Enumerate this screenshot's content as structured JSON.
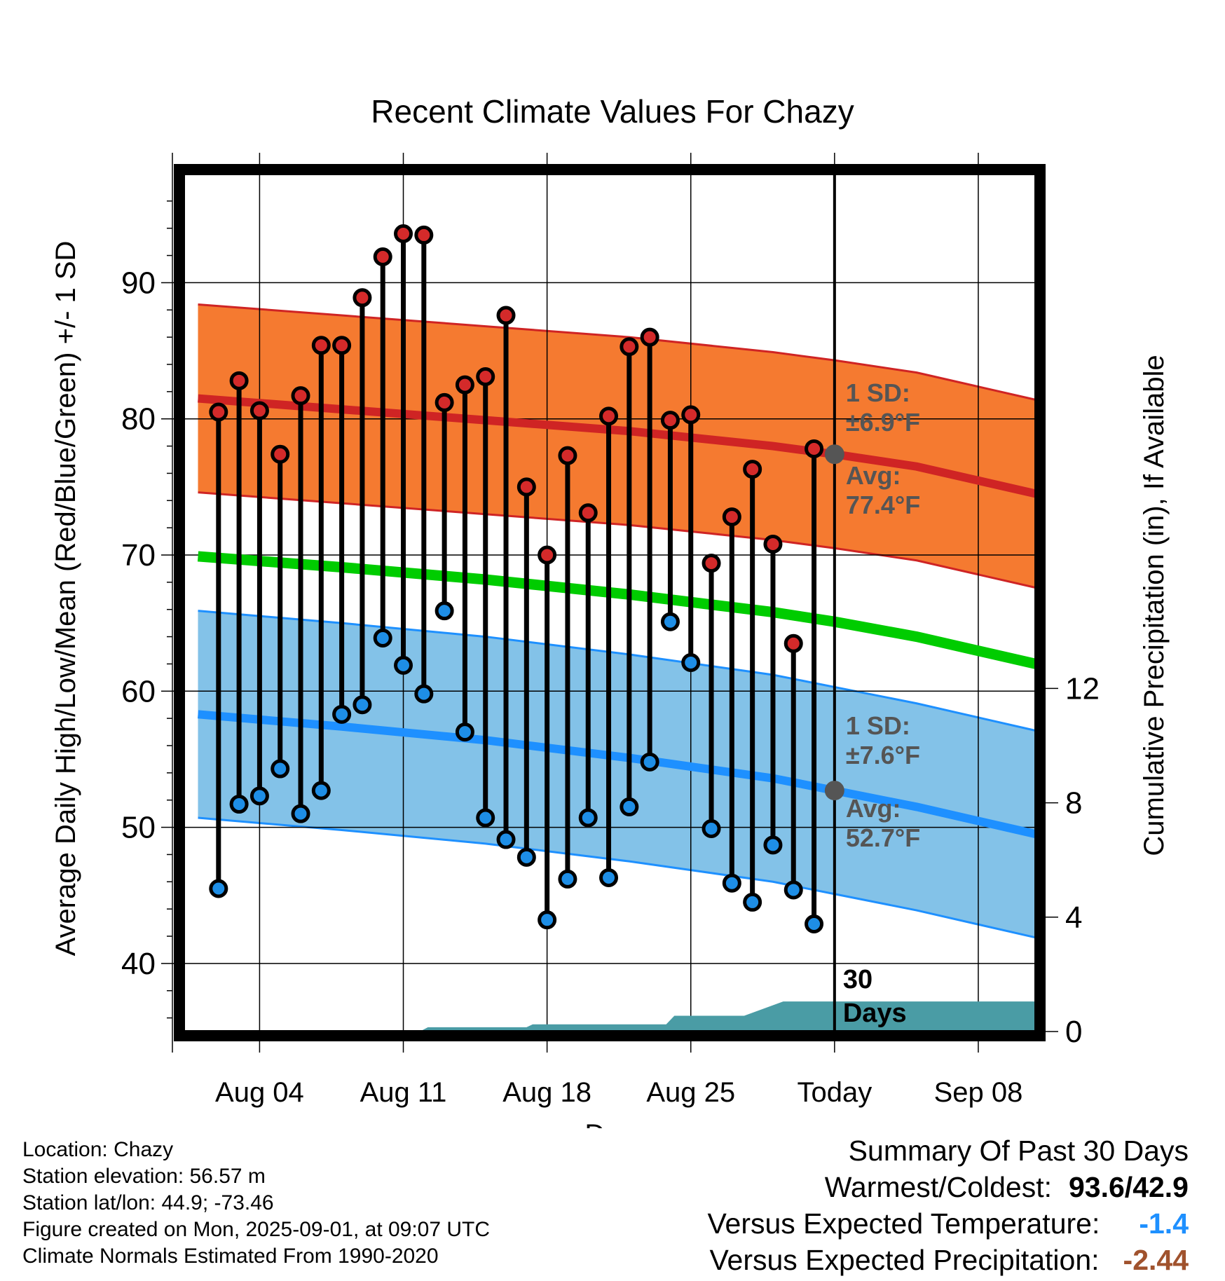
{
  "chart_data": {
    "type": "line",
    "title": "Recent Climate Values For Chazy",
    "xlabel": "Day",
    "ylabel": "Average Daily High/Low/Mean (Red/Blue/Green) +/- 1 SD",
    "y2label": "Cumulative Precipitation (in), If Available",
    "ylim": [
      35,
      98
    ],
    "y2lim": [
      0,
      30
    ],
    "xlim_day_of_year": [
      212.3,
      253.8
    ],
    "x_ticks": [
      {
        "label": "Aug 04",
        "doy": 216
      },
      {
        "label": "Aug 11",
        "doy": 223
      },
      {
        "label": "Aug 18",
        "doy": 230
      },
      {
        "label": "Aug 25",
        "doy": 237
      },
      {
        "label": "Today",
        "doy": 244
      },
      {
        "label": "Sep 08",
        "doy": 251
      }
    ],
    "y_ticks": [
      40,
      50,
      60,
      70,
      80,
      90
    ],
    "y2_ticks": [
      0,
      4,
      8,
      12
    ],
    "today_doy": 244,
    "today_label": [
      "30",
      "Days"
    ],
    "normals": {
      "doy": [
        213,
        220,
        227,
        234,
        241,
        244,
        248,
        253.8
      ],
      "high_avg": [
        81.5,
        80.7,
        79.9,
        79.1,
        78.0,
        77.4,
        76.5,
        74.5
      ],
      "high_sd": 6.9,
      "low_avg": [
        58.3,
        57.4,
        56.4,
        55.1,
        53.6,
        52.7,
        51.5,
        49.5
      ],
      "low_sd": 7.6,
      "mean_avg": [
        69.9,
        69.1,
        68.2,
        67.1,
        65.8,
        65.1,
        64.0,
        62.0
      ],
      "high_label": [
        "1 SD:",
        "±6.9°F",
        "Avg:",
        "77.4°F"
      ],
      "low_label": [
        "1 SD:",
        "±7.6°F",
        "Avg:",
        "52.7°F"
      ]
    },
    "days": [
      {
        "doy": 214,
        "high": 80.5,
        "low": 45.5
      },
      {
        "doy": 215,
        "high": 82.8,
        "low": 51.7
      },
      {
        "doy": 216,
        "high": 80.6,
        "low": 52.3
      },
      {
        "doy": 217,
        "high": 77.4,
        "low": 54.3
      },
      {
        "doy": 218,
        "high": 81.7,
        "low": 51.0
      },
      {
        "doy": 219,
        "high": 85.4,
        "low": 52.7
      },
      {
        "doy": 220,
        "high": 85.4,
        "low": 58.3
      },
      {
        "doy": 221,
        "high": 88.9,
        "low": 59.0
      },
      {
        "doy": 222,
        "high": 91.9,
        "low": 63.9
      },
      {
        "doy": 223,
        "high": 93.6,
        "low": 61.9
      },
      {
        "doy": 224,
        "high": 93.5,
        "low": 59.8
      },
      {
        "doy": 225,
        "high": 81.2,
        "low": 65.9
      },
      {
        "doy": 226,
        "high": 82.5,
        "low": 57.0
      },
      {
        "doy": 227,
        "high": 83.1,
        "low": 50.7
      },
      {
        "doy": 228,
        "high": 87.6,
        "low": 49.1
      },
      {
        "doy": 229,
        "high": 75.0,
        "low": 47.8
      },
      {
        "doy": 230,
        "high": 70.0,
        "low": 43.2
      },
      {
        "doy": 231,
        "high": 77.3,
        "low": 46.2
      },
      {
        "doy": 232,
        "high": 73.1,
        "low": 50.7
      },
      {
        "doy": 233,
        "high": 80.2,
        "low": 46.3
      },
      {
        "doy": 234,
        "high": 85.3,
        "low": 51.5
      },
      {
        "doy": 235,
        "high": 86.0,
        "low": 54.8
      },
      {
        "doy": 236,
        "high": 79.9,
        "low": 65.1
      },
      {
        "doy": 237,
        "high": 80.3,
        "low": 62.1
      },
      {
        "doy": 238,
        "high": 69.4,
        "low": 49.9
      },
      {
        "doy": 239,
        "high": 72.8,
        "low": 45.9
      },
      {
        "doy": 240,
        "high": 76.3,
        "low": 44.5
      },
      {
        "doy": 241,
        "high": 70.8,
        "low": 48.7
      },
      {
        "doy": 242,
        "high": 63.5,
        "low": 45.4
      },
      {
        "doy": 243,
        "high": 77.8,
        "low": 42.9
      }
    ],
    "precip": {
      "doy": [
        212.3,
        223.8,
        224.2,
        229.0,
        229.3,
        235.8,
        236.2,
        239.6,
        241.5,
        244.0,
        253.8
      ],
      "inches": [
        0,
        0,
        0.15,
        0.15,
        0.25,
        0.25,
        0.55,
        0.55,
        1.05,
        1.05,
        1.05
      ]
    },
    "colors": {
      "high_band": "#f57a30",
      "high_line": "#cf2424",
      "low_band": "#83c2e8",
      "low_line": "#1e90ff",
      "mean_line": "#00cc00",
      "precip": "#4a9ca5",
      "high_dot": "#d42a2a",
      "low_dot": "#1e8ee6",
      "label": "#555555"
    }
  },
  "info": {
    "location": "Location: Chazy",
    "elevation": "Station elevation: 56.57 m",
    "latlon": "Station lat/lon: 44.9; -73.46",
    "created": "Figure created on Mon, 2025-09-01, at 09:07 UTC",
    "normals": "Climate Normals Estimated From 1990-2020"
  },
  "summary": {
    "title": "Summary Of Past 30 Days",
    "warmest_label": "Warmest/Coldest:",
    "warmest_value": "93.6/42.9",
    "temp_label": "Versus Expected Temperature:",
    "temp_value": "-1.4",
    "temp_color": "#1e90ff",
    "precip_label": "Versus Expected Precipitation:",
    "precip_value": "-2.44",
    "precip_color": "#a0522d"
  }
}
